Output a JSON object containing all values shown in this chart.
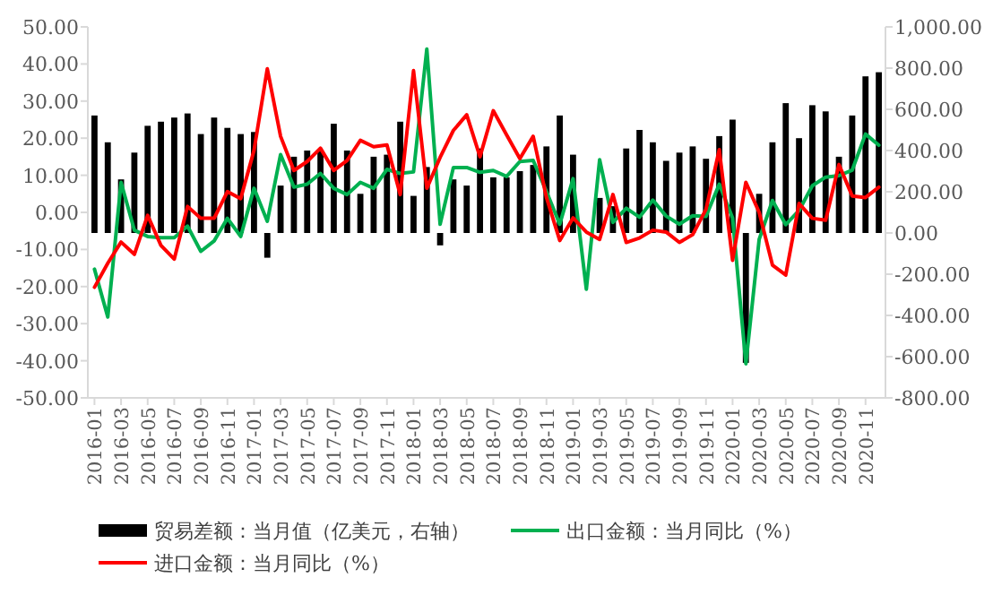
{
  "chart_data": {
    "type": "bar",
    "categories": [
      "2016-01",
      null,
      "2016-03",
      null,
      "2016-05",
      null,
      "2016-07",
      null,
      "2016-09",
      null,
      "2016-11",
      null,
      "2017-01",
      null,
      "2017-03",
      null,
      "2017-05",
      null,
      "2017-07",
      null,
      "2017-09",
      null,
      "2017-11",
      null,
      "2018-01",
      null,
      "2018-03",
      null,
      "2018-05",
      null,
      "2018-07",
      null,
      "2018-09",
      null,
      "2018-11",
      null,
      "2019-01",
      null,
      "2019-03",
      null,
      "2019-05",
      null,
      "2019-07",
      null,
      "2019-09",
      null,
      "2019-11",
      null,
      "2020-01",
      null,
      "2020-03",
      null,
      "2020-05",
      null,
      "2020-07",
      null,
      "2020-09",
      null,
      "2020-11",
      null
    ],
    "series": [
      {
        "name": "贸易差额：当月值（亿美元，右轴）",
        "axis": "y2",
        "color": "#000000",
        "values": [
          570,
          440,
          260,
          390,
          520,
          540,
          560,
          580,
          480,
          560,
          510,
          480,
          490,
          -120,
          230,
          370,
          400,
          400,
          530,
          400,
          190,
          370,
          380,
          540,
          180,
          320,
          -60,
          260,
          230,
          410,
          270,
          270,
          300,
          330,
          420,
          570,
          380,
          null,
          170,
          130,
          410,
          500,
          440,
          350,
          390,
          420,
          360,
          470,
          550,
          -630,
          190,
          440,
          630,
          460,
          620,
          590,
          370,
          570,
          760,
          780
        ]
      },
      {
        "name": "出口金额：当月同比（%）",
        "type": "line",
        "color": "#00b050",
        "values": [
          -15.3,
          -28.2,
          8.1,
          -4.8,
          -6.5,
          -6.8,
          -6.8,
          -3.7,
          -10.5,
          -7.7,
          -1.6,
          -6.5,
          6.5,
          -2.4,
          15.6,
          6.8,
          7.6,
          10.5,
          6.5,
          4.8,
          8.1,
          6.5,
          11.6,
          10.5,
          10.9,
          44.0,
          -3.2,
          12.1,
          12.1,
          10.8,
          11.3,
          9.7,
          13.7,
          14.0,
          5.6,
          -3.2,
          9.1,
          -20.7,
          14.2,
          -2.7,
          1.1,
          -1.3,
          3.3,
          -1.0,
          -3.2,
          -0.9,
          -1.1,
          7.6,
          -1.5,
          -40.8,
          -7.3,
          3.2,
          -3.3,
          0.5,
          7.2,
          9.5,
          9.9,
          11.4,
          21.1,
          18.1
        ]
      },
      {
        "name": "进口金额：当月同比（%）",
        "type": "line",
        "color": "#ff0000",
        "values": [
          -20.2,
          -13.7,
          -8.0,
          -11.3,
          -0.8,
          -8.9,
          -12.6,
          1.6,
          -1.6,
          -1.6,
          5.6,
          3.7,
          16.7,
          38.7,
          20.5,
          11.3,
          13.7,
          17.3,
          11.3,
          14.0,
          19.4,
          17.7,
          18.2,
          4.8,
          38.2,
          6.5,
          14.8,
          22.1,
          26.3,
          15.0,
          27.4,
          20.9,
          14.5,
          20.5,
          4.0,
          -7.6,
          -1.5,
          -5.3,
          -7.3,
          4.8,
          -8.1,
          -6.9,
          -4.8,
          -5.3,
          -8.1,
          -6.0,
          0.8,
          16.9,
          -12.9,
          8.1,
          0.0,
          -14.2,
          -16.9,
          2.4,
          -1.6,
          -2.1,
          12.9,
          4.4,
          4.0,
          6.8
        ]
      }
    ],
    "ylim": [
      -50,
      50
    ],
    "yticks": [
      {
        "value": -50,
        "label": "-50.00"
      },
      {
        "value": -40,
        "label": "-40.00"
      },
      {
        "value": -30,
        "label": "-30.00"
      },
      {
        "value": -20,
        "label": "-20.00"
      },
      {
        "value": -10,
        "label": "-10.00"
      },
      {
        "value": 0,
        "label": "0.00"
      },
      {
        "value": 10,
        "label": "10.00"
      },
      {
        "value": 20,
        "label": "20.00"
      },
      {
        "value": 30,
        "label": "30.00"
      },
      {
        "value": 40,
        "label": "40.00"
      },
      {
        "value": 50,
        "label": "50.00"
      }
    ],
    "y2lim": [
      -800,
      1000
    ],
    "y2ticks": [
      {
        "value": -800,
        "label": "-800.00"
      },
      {
        "value": -600,
        "label": "-600.00"
      },
      {
        "value": -400,
        "label": "-400.00"
      },
      {
        "value": -200,
        "label": "-200.00"
      },
      {
        "value": 0,
        "label": "0.00"
      },
      {
        "value": 200,
        "label": "200.00"
      },
      {
        "value": 400,
        "label": "400.00"
      },
      {
        "value": 600,
        "label": "600.00"
      },
      {
        "value": 800,
        "label": "800.00"
      },
      {
        "value": 1000,
        "label": "1,000.00"
      }
    ],
    "legend": "bottom"
  }
}
